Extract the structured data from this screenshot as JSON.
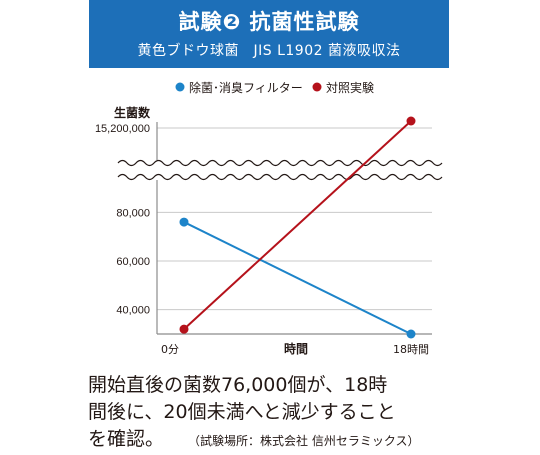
{
  "header": {
    "title": "試験❷ 抗菌性試験",
    "subtitle": "黄色ブドウ球菌　JIS L1902 菌液吸収法",
    "bg_color": "#1d6fb8"
  },
  "chart_data": {
    "type": "line",
    "x": [
      "0分",
      "18時間"
    ],
    "xlabel": "時間",
    "ylabel": "生菌数",
    "y_ticks": [
      "40,000",
      "60,000",
      "80,000",
      "15,200,000"
    ],
    "axis_break": true,
    "ylim": [
      30000,
      90000
    ],
    "grid": true,
    "legend_position": "top",
    "series": [
      {
        "name": "除菌･消臭フィルター",
        "color": "#1d84c9",
        "values": [
          76000,
          20
        ]
      },
      {
        "name": "対照実験",
        "color": "#b5121b",
        "values": [
          32000,
          15200000
        ]
      }
    ]
  },
  "caption": {
    "line1": "開始直後の菌数76,000個が、18時",
    "line2": "間後に、20個未満へと減少すること",
    "line3": "を確認。",
    "source": "（試験場所：株式会社 信州セラミックス）"
  }
}
